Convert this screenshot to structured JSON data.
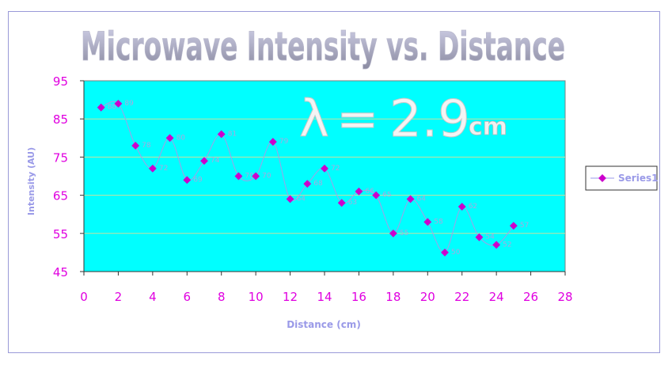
{
  "chart_data": {
    "type": "line",
    "title": "Microwave Intensity vs. Distance",
    "annotation": "λ = 2.9 cm",
    "annotation_parts": {
      "lambda": "λ",
      "equals": "=",
      "value": "2.9",
      "unit": "cm"
    },
    "xlabel": "Distance (cm)",
    "ylabel": "Intensity (AU)",
    "xlim": [
      0,
      28
    ],
    "ylim": [
      45,
      95
    ],
    "xticks": [
      0,
      2,
      4,
      6,
      8,
      10,
      12,
      14,
      16,
      18,
      20,
      22,
      24,
      26,
      28
    ],
    "yticks": [
      45,
      55,
      65,
      75,
      85,
      95
    ],
    "grid": true,
    "legend_position": "right",
    "plot_background": "#00ffff",
    "series": [
      {
        "name": "Series1",
        "color": "#cc00cc",
        "x": [
          1,
          2,
          3,
          4,
          5,
          6,
          7,
          8,
          9,
          10,
          11,
          12,
          13,
          14,
          15,
          16,
          17,
          18,
          19,
          20,
          21,
          22,
          23,
          24,
          25
        ],
        "y": [
          88,
          89,
          78,
          72,
          80,
          69,
          74,
          81,
          70,
          70,
          79,
          64,
          68,
          72,
          63,
          66,
          65,
          55,
          64,
          58,
          50,
          62,
          54,
          52,
          57
        ]
      }
    ]
  }
}
